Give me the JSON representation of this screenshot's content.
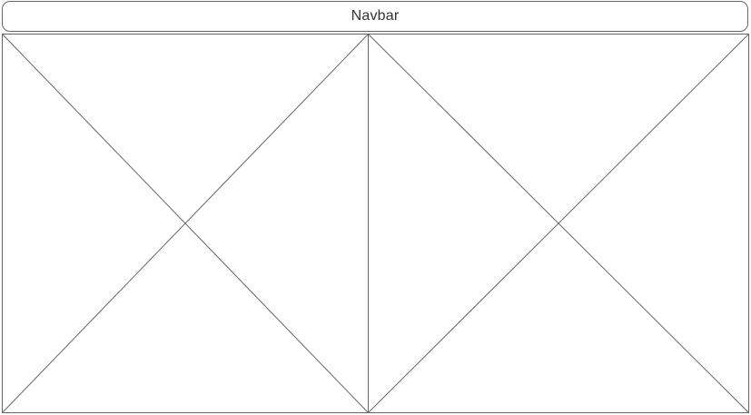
{
  "navbar": {
    "label": "Navbar"
  },
  "placeholders": [
    {
      "name": "image-placeholder-left"
    },
    {
      "name": "image-placeholder-right"
    }
  ],
  "colors": {
    "stroke": "#666666",
    "text": "#333333",
    "background": "#ffffff"
  }
}
